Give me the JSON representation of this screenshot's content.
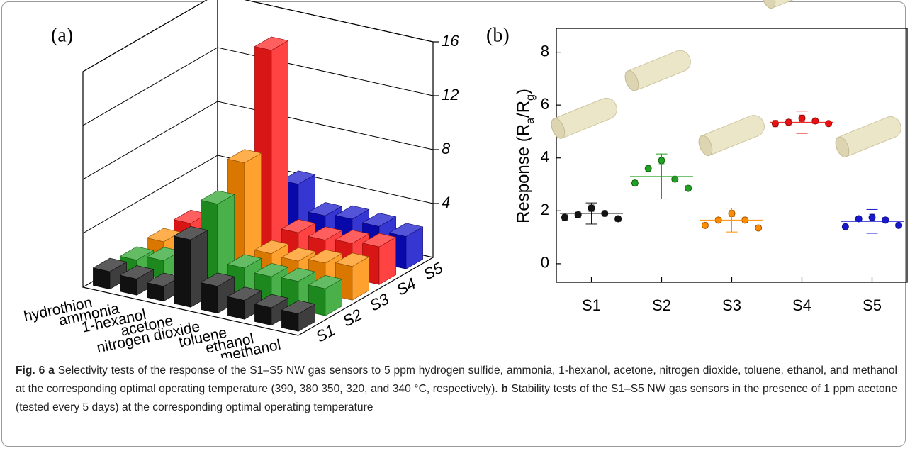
{
  "chart_data": [
    {
      "type": "bar3d",
      "panel_label": "(a)",
      "categories": [
        "hydrothion",
        "ammonia",
        "1-hexanol",
        "acetone",
        "nitrogen dioxide",
        "toluene",
        "ethanol",
        "methanol"
      ],
      "series": [
        {
          "name": "S1",
          "color": "#141414",
          "values": [
            1.3,
            1.2,
            1.1,
            5.0,
            2.0,
            1.4,
            1.3,
            1.3
          ]
        },
        {
          "name": "S2",
          "color": "#22a022",
          "values": [
            1.0,
            1.4,
            1.2,
            6.5,
            2.2,
            2.0,
            2.1,
            2.0
          ]
        },
        {
          "name": "S3",
          "color": "#ff8c00",
          "values": [
            1.2,
            1.4,
            1.6,
            8.4,
            2.1,
            2.0,
            2.3,
            2.5
          ]
        },
        {
          "name": "S4",
          "color": "#ff1a1a",
          "values": [
            1.4,
            1.4,
            1.3,
            15.6,
            2.5,
            2.4,
            2.6,
            2.8
          ]
        },
        {
          "name": "S5",
          "color": "#0a0ac8",
          "values": [
            1.3,
            1.4,
            1.5,
            4.5,
            2.6,
            2.8,
            2.7,
            2.4
          ]
        }
      ],
      "zlim": [
        0,
        16
      ],
      "zticks": [
        4,
        8,
        12,
        16
      ],
      "grid": true
    },
    {
      "type": "errorscatter",
      "panel_label": "(b)",
      "y_label": [
        "Response (R",
        "a",
        "/R",
        "g",
        ")"
      ],
      "categories": [
        "S1",
        "S2",
        "S3",
        "S4",
        "S5"
      ],
      "groups": [
        {
          "color": "#141414",
          "values": [
            1.75,
            1.85,
            2.1,
            1.9,
            1.7
          ],
          "errors": [
            0.1,
            0.1,
            0.12,
            0.1,
            0.1
          ],
          "mean": 1.9,
          "mean_error": 0.4
        },
        {
          "color": "#22a022",
          "values": [
            3.05,
            3.6,
            3.9,
            3.2,
            2.85
          ],
          "errors": [
            0.1,
            0.1,
            0.12,
            0.08,
            0.1
          ],
          "mean": 3.3,
          "mean_error": 0.85
        },
        {
          "color": "#ff8c00",
          "values": [
            1.45,
            1.65,
            1.9,
            1.65,
            1.35
          ],
          "errors": [
            0.1,
            0.1,
            0.12,
            0.1,
            0.08
          ],
          "mean": 1.65,
          "mean_error": 0.45
        },
        {
          "color": "#e81010",
          "values": [
            5.3,
            5.35,
            5.5,
            5.4,
            5.3
          ],
          "errors": [
            0.12,
            0.1,
            0.12,
            0.1,
            0.08
          ],
          "mean": 5.35,
          "mean_error": 0.42
        },
        {
          "color": "#1818d0",
          "values": [
            1.4,
            1.7,
            1.75,
            1.65,
            1.45
          ],
          "errors": [
            0.08,
            0.1,
            0.12,
            0.1,
            0.1
          ],
          "mean": 1.6,
          "mean_error": 0.45
        }
      ],
      "ylim": [
        -0.7,
        8.9
      ],
      "yticks": [
        0,
        2,
        4,
        6,
        8
      ]
    }
  ],
  "caption": {
    "fig": "Fig. 6",
    "a_label": "a",
    "a_text": "Selectivity tests of the response of the S1–S5 NW gas sensors to 5 ppm hydrogen sulfide, ammonia, 1-hexanol, acetone, nitrogen dioxide, toluene, ethanol, and methanol at the corresponding optimal operating temperature (390, 380 350, 320, and 340 °C, respectively).",
    "b_label": "b",
    "b_text": "Stability tests of the S1–S5 NW gas sensors in the presence of 1 ppm acetone (tested every 5 days) at the corresponding optimal operating temperature"
  }
}
